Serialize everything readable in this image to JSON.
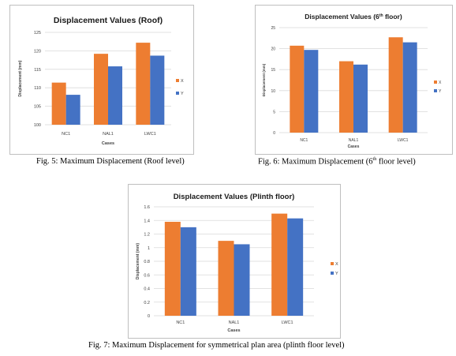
{
  "colors": {
    "X": "#ed7d31",
    "Y": "#4472c4",
    "grid": "#d9d9d9",
    "axis_text": "#404040",
    "title_text": "#1a1a1a"
  },
  "chart_data": [
    {
      "type": "bar",
      "title": "Displacement Values (Roof)",
      "categories": [
        "NC1",
        "NAL1",
        "LWC1"
      ],
      "series": [
        {
          "name": "X",
          "values": [
            111.4,
            119.2,
            122.2
          ]
        },
        {
          "name": "Y",
          "values": [
            108.1,
            115.8,
            118.7
          ]
        }
      ],
      "xlabel": "Cases",
      "ylabel": "Displacement (mm)",
      "ylim": [
        100,
        125
      ],
      "yticks": [
        "100",
        "105",
        "110",
        "115",
        "120",
        "125"
      ],
      "grid": true,
      "legend": "right"
    },
    {
      "type": "bar",
      "title": "Displacement Values (6",
      "title_sup": "th",
      "title_suffix": " floor)",
      "categories": [
        "NC1",
        "NAL1",
        "LWC1"
      ],
      "series": [
        {
          "name": "X",
          "values": [
            20.7,
            17.0,
            22.7
          ]
        },
        {
          "name": "Y",
          "values": [
            19.7,
            16.2,
            21.5
          ]
        }
      ],
      "xlabel": "Cases",
      "ylabel": "Displacement (mm)",
      "ylim": [
        0,
        25
      ],
      "yticks": [
        "0",
        "5",
        "10",
        "15",
        "20",
        "25"
      ],
      "grid": true,
      "legend": "right"
    },
    {
      "type": "bar",
      "title": "Displacement Values (Plinth floor)",
      "categories": [
        "NC1",
        "NAL1",
        "LWC1"
      ],
      "series": [
        {
          "name": "X",
          "values": [
            1.38,
            1.1,
            1.5
          ]
        },
        {
          "name": "Y",
          "values": [
            1.3,
            1.05,
            1.43
          ]
        }
      ],
      "xlabel": "Cases",
      "ylabel": "Displacement (mm)",
      "ylim": [
        0,
        1.6
      ],
      "yticks": [
        "0",
        "0.2",
        "0.4",
        "0.6",
        "0.8",
        "1",
        "1.2",
        "1.4",
        "1.6"
      ],
      "grid": true,
      "legend": "right"
    }
  ],
  "captions": {
    "fig5": "Fig. 5: Maximum Displacement (Roof level)",
    "fig6_pre": "Fig. 6: Maximum Displacement (6",
    "fig6_sup": "th",
    "fig6_post": " floor level)",
    "fig7": "Fig. 7: Maximum Displacement for symmetrical plan area (plinth floor level)"
  }
}
